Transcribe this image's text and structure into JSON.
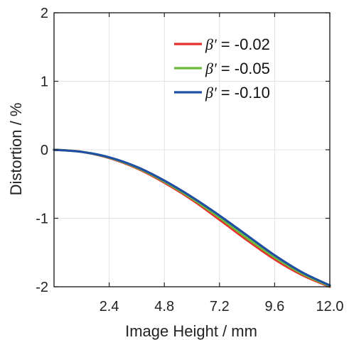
{
  "chart_data": {
    "type": "line",
    "title": "",
    "xlabel": "Image Height / mm",
    "ylabel": "Distortion / %",
    "xlim": [
      0,
      12.0
    ],
    "ylim": [
      -2,
      2
    ],
    "xticks": [
      2.4,
      4.8,
      7.2,
      9.6,
      12.0
    ],
    "xtick_labels": [
      "2.4",
      "4.8",
      "7.2",
      "9.6",
      "12.0"
    ],
    "yticks": [
      2,
      1,
      0,
      -1,
      -2
    ],
    "ytick_labels": [
      "2",
      "1",
      "0",
      "-1",
      "-2"
    ],
    "grid": true,
    "legend_position": "top-right",
    "x": [
      0,
      1.2,
      2.4,
      3.6,
      4.8,
      6.0,
      7.2,
      8.4,
      9.6,
      10.8,
      12.0
    ],
    "series": [
      {
        "name": "β' = -0.02",
        "legend_symbol": "β'",
        "legend_value": " = -0.02",
        "color": "#e8302a",
        "values": [
          0,
          -0.03,
          -0.12,
          -0.27,
          -0.48,
          -0.73,
          -1.02,
          -1.32,
          -1.6,
          -1.83,
          -2.0
        ]
      },
      {
        "name": "β' = -0.05",
        "legend_symbol": "β'",
        "legend_value": " = -0.05",
        "color": "#6cbb3c",
        "values": [
          0,
          -0.03,
          -0.115,
          -0.26,
          -0.465,
          -0.71,
          -0.99,
          -1.29,
          -1.57,
          -1.81,
          -1.99
        ]
      },
      {
        "name": "β' = -0.10",
        "legend_symbol": "β'",
        "legend_value": " = -0.10",
        "color": "#1f4fa3",
        "values": [
          0,
          -0.03,
          -0.11,
          -0.25,
          -0.45,
          -0.69,
          -0.96,
          -1.25,
          -1.54,
          -1.79,
          -1.98
        ]
      }
    ]
  }
}
